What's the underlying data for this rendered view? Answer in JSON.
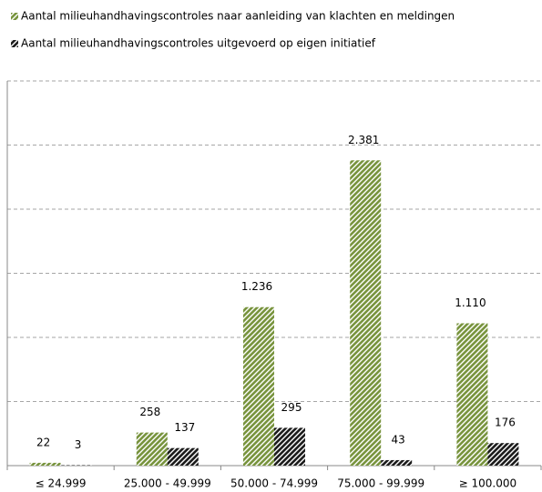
{
  "chart_data": {
    "type": "bar",
    "categories": [
      "≤ 24.999",
      "25.000 - 49.999",
      "50.000 - 74.999",
      "75.000 - 99.999",
      "≥ 100.000"
    ],
    "series": [
      {
        "name": "Aantal milieuhandhavingscontroles naar aanleiding van klachten en meldingen",
        "color": "#77933c",
        "values": [
          22,
          258,
          1236,
          2381,
          1110
        ],
        "value_labels": [
          "22",
          "258",
          "1.236",
          "2.381",
          "1.110"
        ]
      },
      {
        "name": "Aantal milieuhandhavingscontroles uitgevoerd op eigen initiatief",
        "color": "#1a1a1a",
        "values": [
          3,
          137,
          295,
          43,
          176
        ],
        "value_labels": [
          "3",
          "137",
          "295",
          "43",
          "176"
        ]
      }
    ],
    "ylim": [
      0,
      3000
    ],
    "yticks": [
      0,
      500,
      1000,
      1500,
      2000,
      2500,
      3000
    ],
    "grid": true
  }
}
